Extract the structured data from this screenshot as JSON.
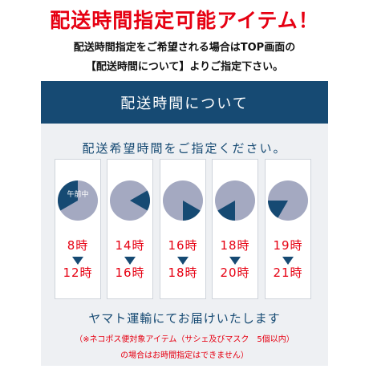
{
  "headline": "配送時間指定可能アイテム！",
  "intro": {
    "line1": "配送時間指定をご希望される場合はTOP画面の",
    "line2": "【配送時間について】よりご指定下さい。"
  },
  "banner": {
    "title": "配送時間について"
  },
  "panel": {
    "subtitle": "配送希望時間をご指定ください。",
    "midday_label": "午前中",
    "slots": [
      {
        "start": "8時",
        "end": "12時",
        "clock_from_hour": 8,
        "clock_to_hour": 12
      },
      {
        "start": "14時",
        "end": "16時",
        "clock_from_hour": 14,
        "clock_to_hour": 16
      },
      {
        "start": "16時",
        "end": "18時",
        "clock_from_hour": 16,
        "clock_to_hour": 18
      },
      {
        "start": "18時",
        "end": "20時",
        "clock_from_hour": 18,
        "clock_to_hour": 20
      },
      {
        "start": "19時",
        "end": "21時",
        "clock_from_hour": 19,
        "clock_to_hour": 21
      }
    ],
    "delivery_text": "ヤマト運輸にてお届けいたします",
    "note_line1": "（※ネコポス便対象アイテム（サシェ及びマスク　5個以内）",
    "note_line2": "の場合はお時間指定はできません）"
  },
  "colors": {
    "accent_red": "#e60012",
    "navy": "#164a73",
    "clock_face": "#a4a9c1",
    "panel_bg": "#eef0f3"
  }
}
